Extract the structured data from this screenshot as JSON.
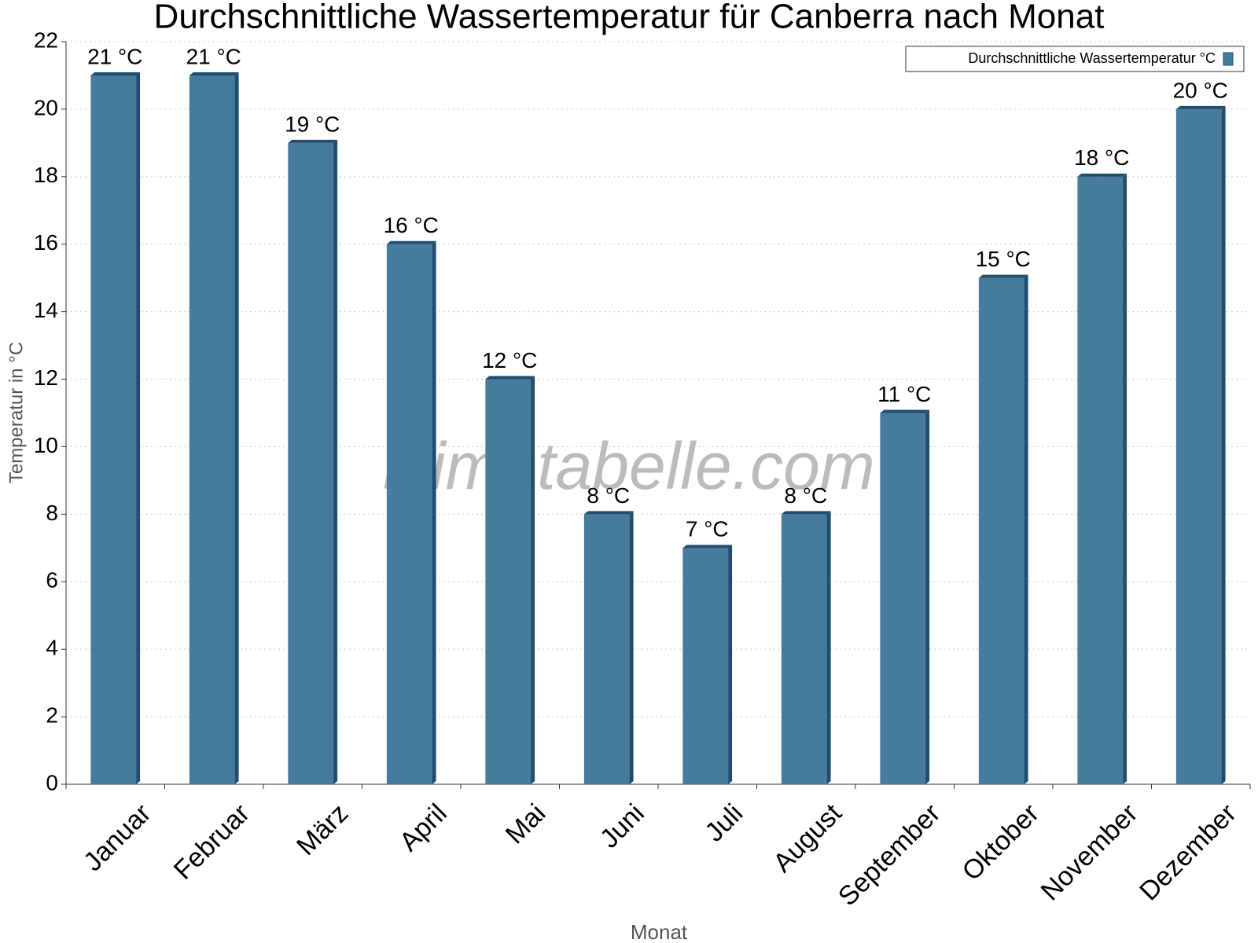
{
  "chart_data": {
    "type": "bar",
    "title": "Durchschnittliche Wassertemperatur für Canberra nach Monat",
    "watermark": "klimatabelle.com",
    "x_label": "Monat",
    "y_label": "Temperatur in °C",
    "categories": [
      "Januar",
      "Februar",
      "März",
      "April",
      "Mai",
      "Juni",
      "Juli",
      "August",
      "September",
      "Oktober",
      "November",
      "Dezember"
    ],
    "series": [
      {
        "name": "Durchschnittliche Wassertemperatur °C",
        "color": "#467b9e",
        "values": [
          21,
          21,
          19,
          16,
          12,
          8,
          7,
          8,
          11,
          15,
          18,
          20
        ],
        "value_labels": [
          "21 °C",
          "21 °C",
          "19 °C",
          "16 °C",
          "12 °C",
          "8 °C",
          "7 °C",
          "8 °C",
          "11 °C",
          "15 °C",
          "18 °C",
          "20 °C"
        ]
      }
    ],
    "ylim": [
      0,
      22
    ],
    "yticks": [
      0,
      2,
      4,
      6,
      8,
      10,
      12,
      14,
      16,
      18,
      20,
      22
    ],
    "grid": true,
    "legend": "top-right"
  }
}
